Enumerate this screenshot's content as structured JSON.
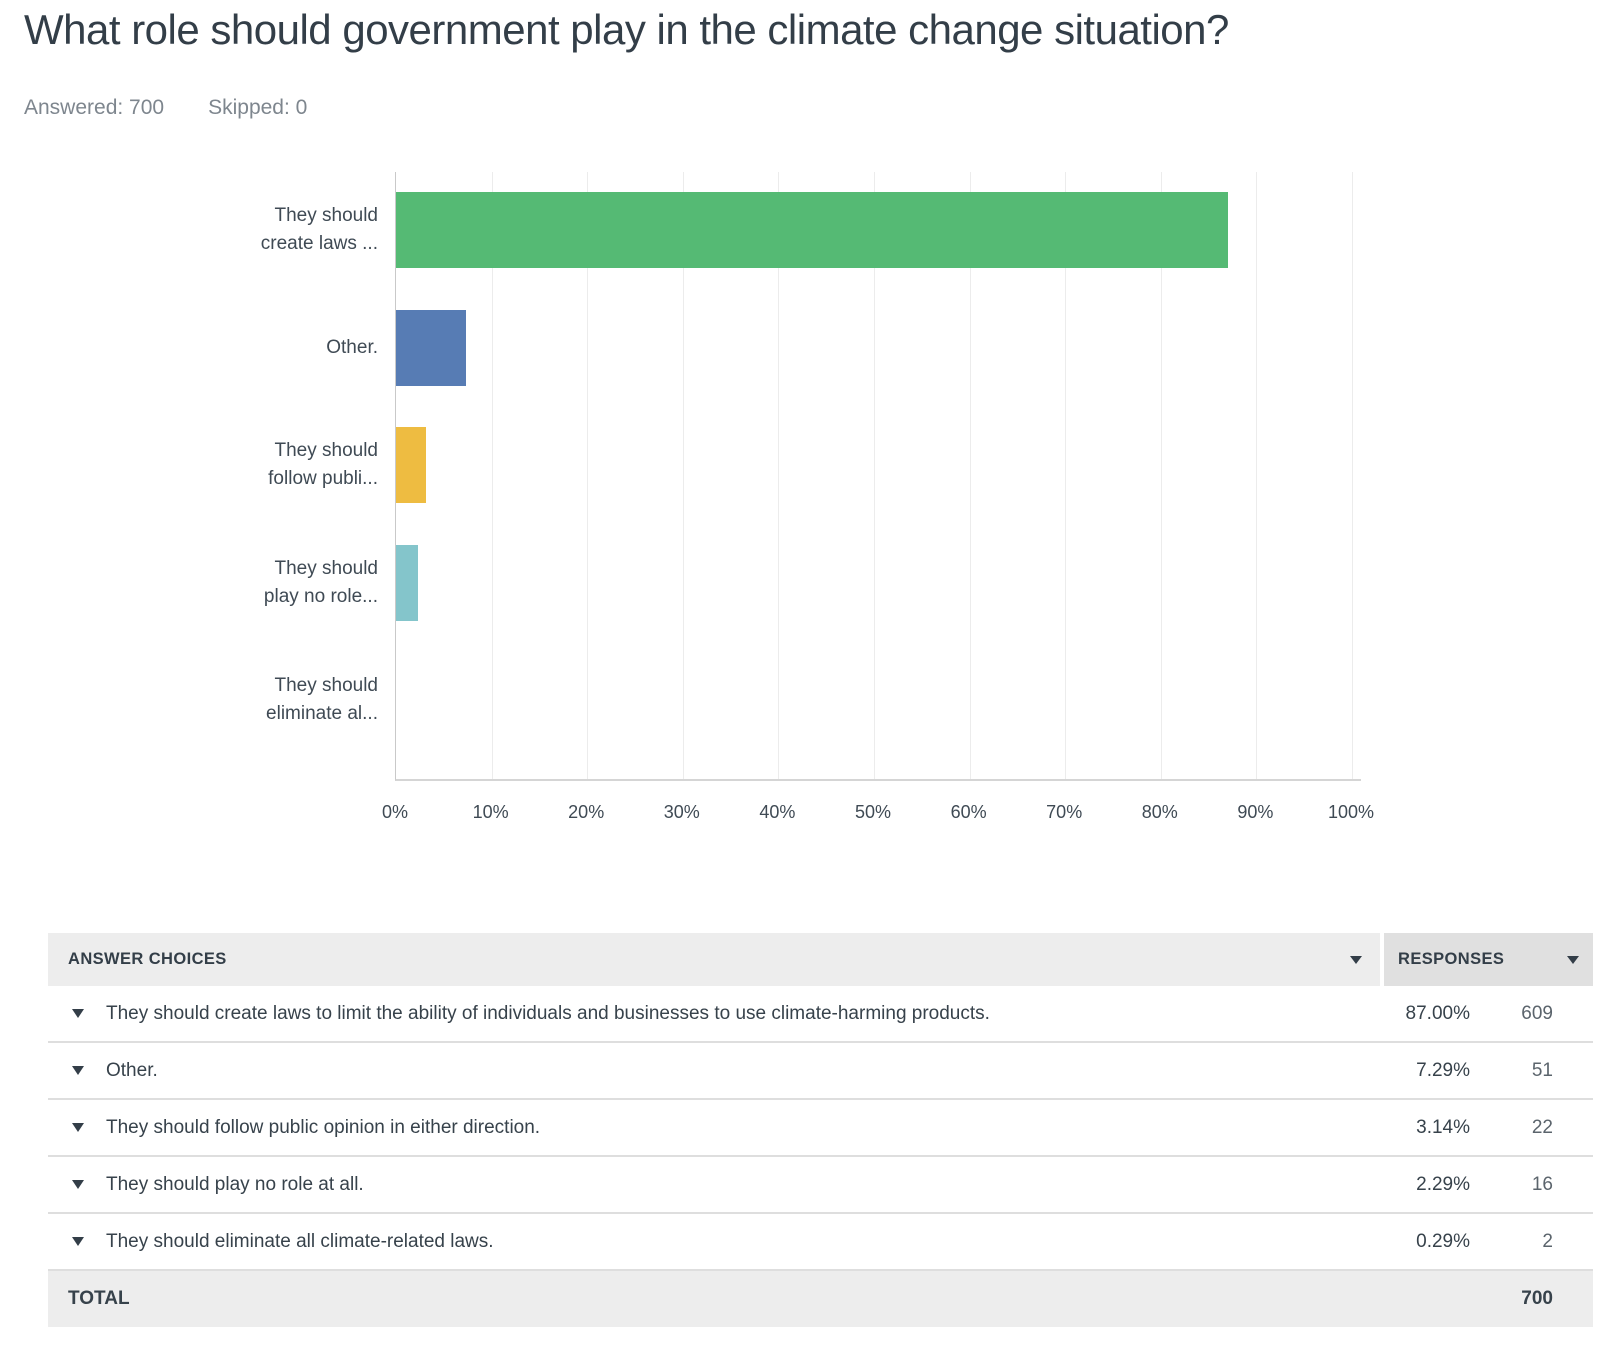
{
  "page": {
    "title": "What role should government play in the climate change situation?",
    "answered_label": "Answered: 700",
    "skipped_label": "Skipped: 0"
  },
  "chart_data": {
    "type": "bar",
    "orientation": "horizontal",
    "categories": [
      "They should\ncreate laws ...",
      "Other.",
      "They should\nfollow publi...",
      "They should\nplay no role...",
      "They should\neliminate al..."
    ],
    "values": [
      87.0,
      7.29,
      3.14,
      2.29,
      0.29
    ],
    "unit": "%",
    "bar_colors": [
      "#55BA74",
      "#577CB4",
      "#EEBC41",
      "#84C5CB",
      null
    ],
    "title": "",
    "xlabel": "",
    "ylabel": "",
    "xlim": [
      0,
      100
    ],
    "x_ticks": [
      0,
      10,
      20,
      30,
      40,
      50,
      60,
      70,
      80,
      90,
      100
    ],
    "x_tick_suffix": "%",
    "grid": "vertical",
    "legend": "none"
  },
  "table": {
    "headers": {
      "answers": "ANSWER CHOICES",
      "responses": "RESPONSES"
    },
    "rows": [
      {
        "answer": "They should create laws to limit the ability of individuals and businesses to use climate-harming products.",
        "percent": "87.00%",
        "count": "609"
      },
      {
        "answer": "Other.",
        "percent": "7.29%",
        "count": "51"
      },
      {
        "answer": "They should follow public opinion in either direction.",
        "percent": "3.14%",
        "count": "22"
      },
      {
        "answer": "They should play no role at all.",
        "percent": "2.29%",
        "count": "16"
      },
      {
        "answer": "They should eliminate all climate-related laws.",
        "percent": "0.29%",
        "count": "2"
      }
    ],
    "total_label": "TOTAL",
    "total_value": "700"
  },
  "colors": {
    "title_text": "#333E48",
    "meta_text": "#7E868E",
    "axis_line": "#C9C9C9",
    "gridline": "#ECECEC",
    "header_bg_answers": "#EDEDED",
    "header_bg_responses": "#E0E0E0",
    "row_border": "#DEDEDE",
    "total_bg": "#EDEDED"
  }
}
